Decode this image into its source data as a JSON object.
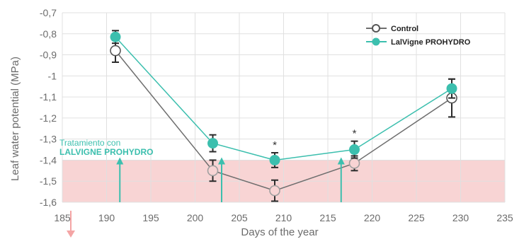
{
  "chart_data": {
    "type": "line",
    "xlabel": "Days of the year",
    "ylabel": "Leaf water potential (MPa)",
    "xlim": [
      185,
      235
    ],
    "ylim": [
      -1.6,
      -0.7
    ],
    "x_ticks": [
      "185",
      "190",
      "195",
      "200",
      "205",
      "210",
      "215",
      "220",
      "225",
      "230",
      "235"
    ],
    "y_ticks": [
      "-0,7",
      "-0,8",
      "-0,9",
      "-1",
      "-1,1",
      "-1,2",
      "-1,3",
      "-1,4",
      "-1,5",
      "-1,6"
    ],
    "grid": true,
    "legend_position": "top-right",
    "stress_zone": {
      "from": -1.6,
      "to": -1.4,
      "color": "#f8d4d4"
    },
    "series": [
      {
        "name": "Control",
        "color": "#6e6e6e",
        "marker": "open-circle",
        "x": [
          191,
          202,
          209,
          218,
          229
        ],
        "y": [
          -0.88,
          -1.45,
          -1.545,
          -1.415,
          -1.105
        ],
        "err": [
          0.055,
          0.05,
          0.05,
          0.035,
          0.09
        ]
      },
      {
        "name": "LalVigne PROHYDRO",
        "color": "#3cbfae",
        "marker": "filled-circle",
        "x": [
          191,
          202,
          209,
          218,
          229
        ],
        "y": [
          -0.815,
          -1.32,
          -1.4,
          -1.35,
          -1.06
        ],
        "err": [
          0.03,
          0.04,
          0.035,
          0.04,
          0.045
        ]
      }
    ],
    "significance_marks": [
      {
        "x": 209,
        "label": "*"
      },
      {
        "x": 218,
        "label": "*"
      }
    ],
    "annotation": {
      "line1": "Tratamiento con",
      "line2": "LALVIGNE PROHYDRO",
      "treatment_days": [
        191.5,
        203,
        216.5
      ],
      "color": "#3cbfae"
    },
    "down_arrow_color": "#f4a5a5"
  }
}
